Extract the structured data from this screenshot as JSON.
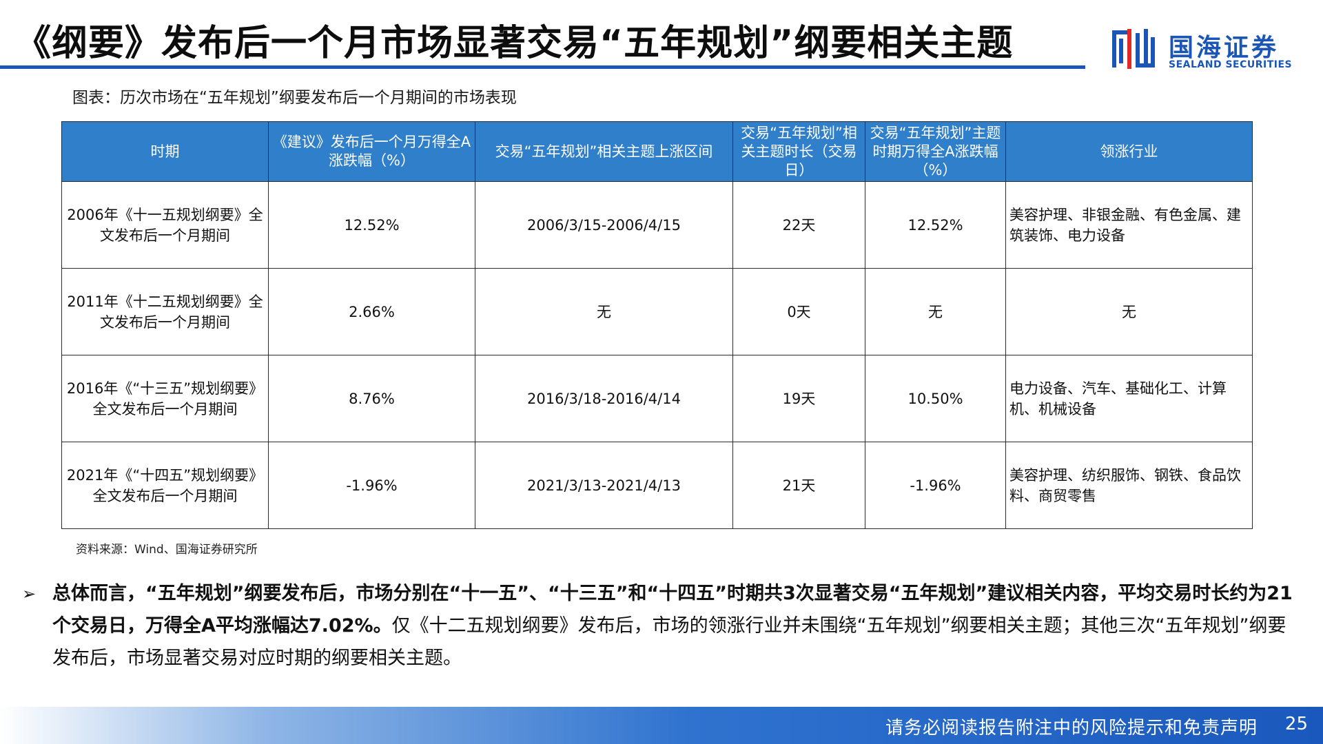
{
  "header": {
    "title": "《纲要》发布后一个月市场显著交易“五年规划”纲要相关主题",
    "logo_cn": "国海证券",
    "logo_en": "SEALAND SECURITIES"
  },
  "caption": "图表：历次市场在“五年规划”纲要发布后一个月期间的市场表现",
  "table": {
    "headers": [
      "时期",
      "《建议》发布后一个月万得全A涨跌幅（%）",
      "交易“五年规划”相关主题上涨区间",
      "交易“五年规划”相关主题时长（交易日）",
      "交易“五年规划”主题时期万得全A涨跌幅（%）",
      "领涨行业"
    ],
    "rows": [
      {
        "period": "2006年《十一五规划纲要》全文发布后一个月期间",
        "change": "12.52%",
        "range": "2006/3/15-2006/4/15",
        "duration": "22天",
        "theme_change": "12.52%",
        "industries": "美容护理、非银金融、有色金属、建筑装饰、电力设备"
      },
      {
        "period": "2011年《十二五规划纲要》全文发布后一个月期间",
        "change": "2.66%",
        "range": "无",
        "duration": "0天",
        "theme_change": "无",
        "industries": "无"
      },
      {
        "period": "2016年《“十三五”规划纲要》全文发布后一个月期间",
        "change": "8.76%",
        "range": "2016/3/18-2016/4/14",
        "duration": "19天",
        "theme_change": "10.50%",
        "industries": "电力设备、汽车、基础化工、计算机、机械设备"
      },
      {
        "period": "2021年《“十四五”规划纲要》全文发布后一个月期间",
        "change": "-1.96%",
        "range": "2021/3/13-2021/4/13",
        "duration": "21天",
        "theme_change": "-1.96%",
        "industries": "美容护理、纺织服饰、钢铁、食品饮料、商贸零售"
      }
    ]
  },
  "source": "资料来源：Wind、国海证券研究所",
  "summary": {
    "bullet": "➢",
    "bold_text": "总体而言，“五年规划”纲要发布后，市场分别在“十一五”、“十三五”和“十四五”时期共3次显著交易“五年规划”建议相关内容，平均交易时长约为21个交易日，万得全A平均涨幅达7.02%。",
    "normal_text": "仅《十二五规划纲要》发布后，市场的领涨行业并未围绕“五年规划”纲要相关主题；其他三次“五年规划”纲要发布后，市场显著交易对应时期的纲要相关主题。"
  },
  "footer": {
    "disclaimer": "请务必阅读报告附注中的风险提示和免责声明",
    "page_number": "25"
  },
  "colors": {
    "brand_blue": "#1b56b6",
    "table_header": "#2f7fcb",
    "footer_blue": "#1a58bd"
  }
}
